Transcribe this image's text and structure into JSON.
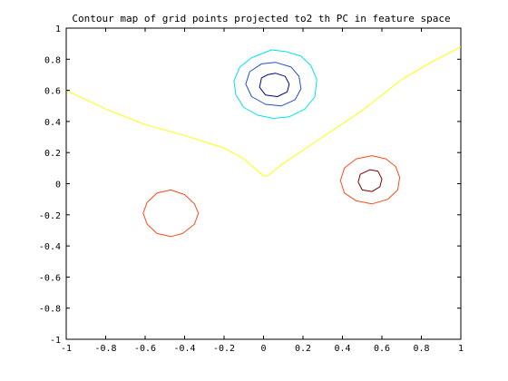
{
  "chart_data": {
    "type": "line",
    "title": "Contour map of grid points projected to2 th PC in feature space",
    "xlim": [
      -1,
      1
    ],
    "ylim": [
      -1,
      1
    ],
    "xticks": [
      -1,
      -0.8,
      -0.6,
      -0.4,
      -0.2,
      0,
      0.2,
      0.4,
      0.6,
      0.8,
      1
    ],
    "yticks": [
      -1,
      -0.8,
      -0.6,
      -0.4,
      -0.2,
      0,
      0.2,
      0.4,
      0.6,
      0.8,
      1
    ],
    "xtick_labels": [
      "-1",
      "-0.8",
      "-0.6",
      "-0.4",
      "-0.2",
      "0",
      "0.2",
      "0.4",
      "0.6",
      "0.8",
      "1"
    ],
    "ytick_labels": [
      "-1",
      "-0.8",
      "-0.6",
      "-0.4",
      "-0.2",
      "0",
      "0.2",
      "0.4",
      "0.6",
      "0.8",
      "1"
    ],
    "grid": false,
    "series": [
      {
        "color": "#ffff00",
        "closed": false,
        "points": [
          [
            -1,
            0.6
          ],
          [
            -0.8,
            0.48
          ],
          [
            -0.6,
            0.38
          ],
          [
            -0.4,
            0.31
          ],
          [
            -0.2,
            0.23
          ],
          [
            -0.1,
            0.16
          ],
          [
            0,
            0.05
          ],
          [
            0.02,
            0.05
          ],
          [
            0.1,
            0.13
          ],
          [
            0.3,
            0.3
          ],
          [
            0.5,
            0.47
          ],
          [
            0.7,
            0.67
          ],
          [
            0.85,
            0.78
          ],
          [
            1,
            0.88
          ]
        ]
      },
      {
        "color": "#00e5e5",
        "closed": true,
        "points": [
          [
            0.04,
            0.86
          ],
          [
            0.11,
            0.85
          ],
          [
            0.19,
            0.82
          ],
          [
            0.24,
            0.76
          ],
          [
            0.27,
            0.67
          ],
          [
            0.26,
            0.56
          ],
          [
            0.21,
            0.48
          ],
          [
            0.13,
            0.43
          ],
          [
            0.05,
            0.42
          ],
          [
            -0.03,
            0.44
          ],
          [
            -0.1,
            0.49
          ],
          [
            -0.14,
            0.57
          ],
          [
            -0.15,
            0.66
          ],
          [
            -0.12,
            0.75
          ],
          [
            -0.06,
            0.81
          ]
        ]
      },
      {
        "color": "#1f4fd6",
        "closed": true,
        "points": [
          [
            0.06,
            0.78
          ],
          [
            0.14,
            0.75
          ],
          [
            0.18,
            0.69
          ],
          [
            0.19,
            0.61
          ],
          [
            0.16,
            0.54
          ],
          [
            0.09,
            0.5
          ],
          [
            0.01,
            0.51
          ],
          [
            -0.06,
            0.56
          ],
          [
            -0.09,
            0.64
          ],
          [
            -0.07,
            0.72
          ],
          [
            -0.01,
            0.77
          ]
        ]
      },
      {
        "color": "#00008f",
        "closed": true,
        "points": [
          [
            0.06,
            0.71
          ],
          [
            0.11,
            0.69
          ],
          [
            0.13,
            0.64
          ],
          [
            0.12,
            0.59
          ],
          [
            0.07,
            0.56
          ],
          [
            0.01,
            0.57
          ],
          [
            -0.02,
            0.62
          ],
          [
            -0.01,
            0.68
          ],
          [
            0.02,
            0.7
          ]
        ]
      },
      {
        "color": "#ff4a1a",
        "closed": true,
        "points": [
          [
            0.55,
            0.18
          ],
          [
            0.62,
            0.16
          ],
          [
            0.67,
            0.11
          ],
          [
            0.69,
            0.04
          ],
          [
            0.68,
            -0.04
          ],
          [
            0.63,
            -0.1
          ],
          [
            0.55,
            -0.13
          ],
          [
            0.47,
            -0.11
          ],
          [
            0.41,
            -0.06
          ],
          [
            0.39,
            0.02
          ],
          [
            0.41,
            0.1
          ],
          [
            0.47,
            0.16
          ]
        ]
      },
      {
        "color": "#800000",
        "closed": true,
        "points": [
          [
            0.54,
            0.09
          ],
          [
            0.58,
            0.08
          ],
          [
            0.6,
            0.03
          ],
          [
            0.59,
            -0.02
          ],
          [
            0.55,
            -0.05
          ],
          [
            0.5,
            -0.04
          ],
          [
            0.48,
            0.01
          ],
          [
            0.49,
            0.06
          ]
        ]
      },
      {
        "color": "#ff4a1a",
        "closed": true,
        "points": [
          [
            -0.47,
            -0.04
          ],
          [
            -0.4,
            -0.07
          ],
          [
            -0.35,
            -0.13
          ],
          [
            -0.33,
            -0.19
          ],
          [
            -0.35,
            -0.26
          ],
          [
            -0.41,
            -0.32
          ],
          [
            -0.47,
            -0.34
          ],
          [
            -0.54,
            -0.32
          ],
          [
            -0.59,
            -0.26
          ],
          [
            -0.61,
            -0.19
          ],
          [
            -0.59,
            -0.12
          ],
          [
            -0.54,
            -0.06
          ]
        ]
      }
    ]
  }
}
